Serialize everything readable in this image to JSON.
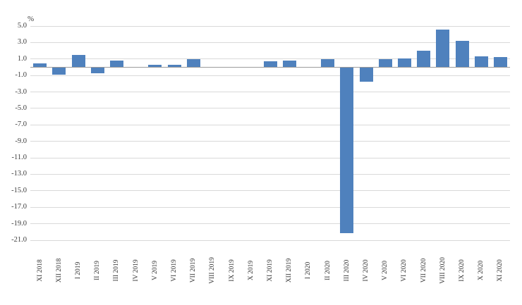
{
  "chart_data": {
    "type": "bar",
    "title": "",
    "unit_label": "%",
    "xlabel": "",
    "ylabel": "%",
    "categories": [
      "XI 2018",
      "XII 2018",
      "I 2019",
      "II 2019",
      "III 2019",
      "IV 2019",
      "V 2019",
      "VI 2019",
      "VII 2019",
      "VIII 2019",
      "IX 2019",
      "X 2019",
      "XI 2019",
      "XII 2019",
      "I 2020",
      "II 2020",
      "III 2020",
      "IV 2020",
      "V 2020",
      "VI 2020",
      "VII 2020",
      "VIII 2020",
      "IX 2020",
      "X 2020",
      "XI 2020"
    ],
    "values": [
      0.5,
      -0.9,
      1.5,
      -0.7,
      0.8,
      0.0,
      0.3,
      0.3,
      1.0,
      0.0,
      0.0,
      0.0,
      0.7,
      0.8,
      0.0,
      1.0,
      -20.1,
      -1.7,
      1.0,
      1.1,
      2.0,
      4.6,
      3.2,
      1.3,
      1.2
    ],
    "y_ticks": [
      "5.0",
      "3.0",
      "1.0",
      "-1.0",
      "-3.0",
      "-5.0",
      "-7.0",
      "-9.0",
      "-11.0",
      "-13.0",
      "-15.0",
      "-17.0",
      "-19.0",
      "-21.0"
    ],
    "ylim": [
      -21,
      5
    ],
    "grid": true,
    "legend": "none",
    "bar_color": "#4f81bd",
    "gridline_color": "#d9d9d9",
    "zero_axis_color": "#9b9b9b"
  }
}
